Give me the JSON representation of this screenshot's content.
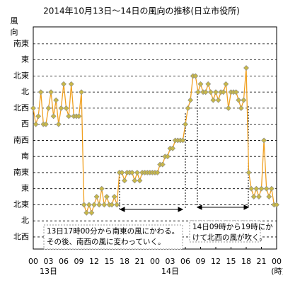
{
  "chart_data": {
    "type": "line",
    "title": "2014年10月13日～14日の風向の推移(日立市役所)",
    "y_label": "風向",
    "x_unit": "(時)",
    "xlim": [
      0,
      48
    ],
    "xticks": [
      {
        "value": 0,
        "label": "00"
      },
      {
        "value": 3,
        "label": "03"
      },
      {
        "value": 6,
        "label": "06"
      },
      {
        "value": 9,
        "label": "09"
      },
      12,
      15,
      18,
      21,
      {
        "value": 24,
        "label": "00"
      },
      {
        "value": 27,
        "label": "03"
      },
      {
        "value": 30,
        "label": "06"
      },
      {
        "value": 33,
        "label": "09"
      },
      {
        "value": 36,
        "label": "12"
      },
      {
        "value": 39,
        "label": "15"
      },
      {
        "value": 42,
        "label": "18"
      },
      {
        "value": 45,
        "label": "21"
      },
      {
        "value": 48,
        "label": "00"
      }
    ],
    "day_labels": [
      {
        "value": 3,
        "label": "13日"
      },
      {
        "value": 27,
        "label": "14日"
      }
    ],
    "ylim": [
      -0.75,
      13.05
    ],
    "yticks": [
      {
        "value": 0,
        "label": "北西"
      },
      {
        "value": 1,
        "label": "北"
      },
      {
        "value": 2,
        "label": "北東"
      },
      {
        "value": 3,
        "label": "東"
      },
      {
        "value": 4,
        "label": "南東"
      },
      {
        "value": 5,
        "label": "南"
      },
      {
        "value": 6,
        "label": "南西"
      },
      {
        "value": 7,
        "label": "西"
      },
      {
        "value": 8,
        "label": "北西"
      },
      {
        "value": 9,
        "label": "北"
      },
      {
        "value": 10,
        "label": "北東"
      },
      {
        "value": 11,
        "label": "東"
      },
      {
        "value": 12,
        "label": "南東"
      }
    ],
    "grid": "y",
    "series": [
      {
        "color": "#f0a020",
        "marker_color": "#c8b848",
        "x": [
          0,
          0.5,
          1,
          1.5,
          2,
          2.5,
          3,
          3.5,
          4,
          4.5,
          5,
          5.5,
          6,
          6.5,
          7,
          7.5,
          8,
          8.5,
          9,
          9.5,
          10,
          10.5,
          11,
          11.5,
          12,
          12.5,
          13,
          13.5,
          14,
          14.5,
          15,
          15.5,
          16,
          16.5,
          17,
          17.5,
          18,
          18.5,
          19,
          19.5,
          20,
          20.5,
          21,
          21.5,
          22,
          22.5,
          23,
          23.5,
          24,
          24.5,
          25,
          25.5,
          26,
          26.5,
          27,
          27.5,
          28,
          28.5,
          29,
          29.5,
          30,
          30.5,
          31,
          31.5,
          32,
          32.5,
          33,
          33.5,
          34,
          34.5,
          35,
          35.5,
          36,
          36.5,
          37,
          37.5,
          38,
          38.5,
          39,
          39.5,
          40,
          40.5,
          41,
          41.5,
          42,
          42.5,
          43,
          43.5,
          44,
          44.5,
          45,
          45.5,
          46,
          46.5,
          47,
          47.5,
          48
        ],
        "values": [
          8,
          7,
          7.5,
          9,
          7,
          7,
          8,
          9,
          7.5,
          8.5,
          7,
          8,
          9.5,
          8,
          7.5,
          9.5,
          7.5,
          7.5,
          7.5,
          9,
          2,
          1.5,
          2,
          1.5,
          2,
          2.5,
          2,
          3,
          2,
          2.5,
          2,
          2,
          2.5,
          2,
          4,
          4,
          3.5,
          4,
          4,
          4,
          3.5,
          4,
          3.5,
          4,
          4,
          4,
          4,
          4,
          4,
          4,
          4.5,
          4.5,
          5,
          5,
          5.5,
          5.5,
          6,
          6,
          6,
          6,
          7,
          8,
          8.5,
          10,
          10,
          9,
          9.5,
          9,
          9,
          9.5,
          9,
          8.5,
          9,
          8.5,
          9,
          9,
          9.5,
          8,
          9,
          9,
          9,
          8.5,
          8,
          8.5,
          10.5,
          4,
          3,
          2.5,
          3,
          2.5,
          3,
          6,
          3,
          2.5,
          3,
          2,
          2
        ]
      }
    ],
    "annotations": [
      {
        "lines": [
          "13日17時00分から南東の風にかわる。",
          "その後、南西の風に変わっていく。"
        ]
      },
      {
        "lines": [
          "14日09時から19時にか",
          "けて北西の風が吹く。"
        ]
      }
    ]
  }
}
